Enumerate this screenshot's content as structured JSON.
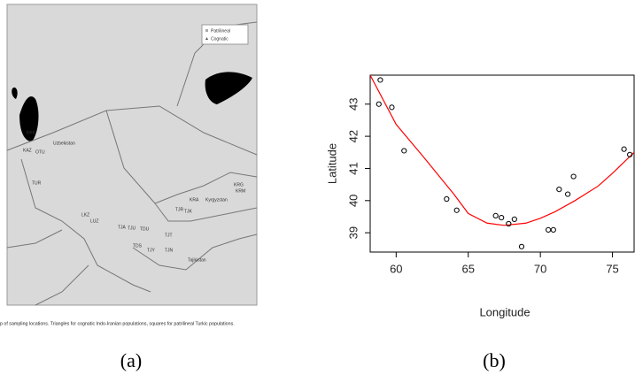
{
  "panel_a": {
    "legend": [
      "Patrilineal",
      "Cognatic"
    ],
    "labels": [
      "KKK",
      "KAZ",
      "OTU",
      "Uzbekistan",
      "TUR",
      "LKZ",
      "LUZ",
      "TJA",
      "TJU",
      "TDU",
      "TDS",
      "TJY",
      "TJT",
      "TJN",
      "TJR",
      "TJK",
      "KRA",
      "Kyrgyzstan",
      "KRG",
      "KRM",
      "Tajikistan"
    ],
    "caption": "p of sampling locations. Triangles for cognatic Indo-Iranian populations, squares for patrilineal Turkic populations.",
    "tag": "(a)"
  },
  "panel_b": {
    "tag": "(b)"
  },
  "chart_data": {
    "type": "scatter",
    "x_label": "Longitude",
    "y_label": "Latitude",
    "x": [
      58.9,
      58.8,
      59.7,
      60.55,
      63.5,
      64.2,
      66.9,
      67.3,
      67.8,
      68.2,
      68.7,
      70.55,
      70.9,
      71.3,
      71.9,
      72.3,
      75.8,
      76.2
    ],
    "values": [
      43.75,
      43.0,
      42.9,
      41.55,
      40.05,
      39.7,
      39.53,
      39.47,
      39.28,
      39.42,
      38.57,
      39.09,
      39.09,
      40.35,
      40.2,
      40.75,
      41.6,
      41.43
    ],
    "color": "#000000",
    "fit": {
      "x": [
        58.2,
        60,
        62,
        64,
        65,
        66.3,
        67.5,
        69,
        70,
        71,
        72.4,
        74,
        75,
        76.5
      ],
      "values": [
        43.9,
        42.37,
        41.3,
        40.2,
        39.6,
        39.3,
        39.23,
        39.3,
        39.45,
        39.65,
        40.0,
        40.45,
        40.85,
        41.5
      ],
      "color": "#ff0000"
    },
    "xlim": [
      58.2,
      76.5
    ],
    "ylim": [
      38.4,
      43.9
    ],
    "xticks": [
      60,
      65,
      70,
      75
    ],
    "yticks": [
      39,
      40,
      41,
      42,
      43
    ]
  }
}
